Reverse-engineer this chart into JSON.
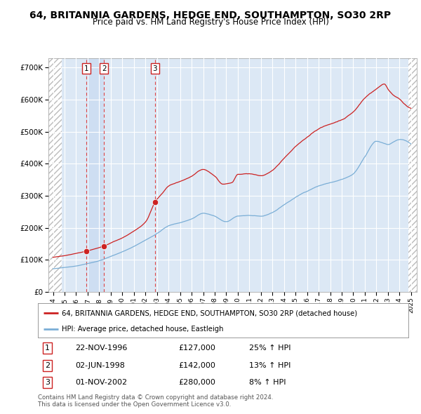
{
  "title": "64, BRITANNIA GARDENS, HEDGE END, SOUTHAMPTON, SO30 2RP",
  "subtitle": "Price paid vs. HM Land Registry's House Price Index (HPI)",
  "title_fontsize": 10,
  "subtitle_fontsize": 8.5,
  "ylim": [
    0,
    730000
  ],
  "yticks": [
    0,
    100000,
    200000,
    300000,
    400000,
    500000,
    600000,
    700000
  ],
  "ytick_labels": [
    "£0",
    "£100K",
    "£200K",
    "£300K",
    "£400K",
    "£500K",
    "£600K",
    "£700K"
  ],
  "xlim_start": 1993.6,
  "xlim_end": 2025.5,
  "background_color": "#ffffff",
  "plot_bg_color": "#dce8f5",
  "hatched_left_end": 1994.75,
  "hatched_right_start": 2024.75,
  "grid_color": "#ffffff",
  "hpi_line_color": "#7aaed6",
  "price_line_color": "#cc2222",
  "sale_marker_color": "#cc2222",
  "dashed_line_color": "#dd4444",
  "sale_events": [
    {
      "num": 1,
      "year": 1996.9,
      "price": 127000,
      "date": "22-NOV-1996",
      "pct": "25%",
      "dir": "↑"
    },
    {
      "num": 2,
      "year": 1998.42,
      "price": 142000,
      "date": "02-JUN-1998",
      "pct": "13%",
      "dir": "↑"
    },
    {
      "num": 3,
      "year": 2002.83,
      "price": 280000,
      "date": "01-NOV-2002",
      "pct": "8%",
      "dir": "↑"
    }
  ],
  "legend_line1": "64, BRITANNIA GARDENS, HEDGE END, SOUTHAMPTON, SO30 2RP (detached house)",
  "legend_line2": "HPI: Average price, detached house, Eastleigh",
  "footer_line1": "Contains HM Land Registry data © Crown copyright and database right 2024.",
  "footer_line2": "This data is licensed under the Open Government Licence v3.0.",
  "xtick_years": [
    1994,
    1995,
    1996,
    1997,
    1998,
    1999,
    2000,
    2001,
    2002,
    2003,
    2004,
    2005,
    2006,
    2007,
    2008,
    2009,
    2010,
    2011,
    2012,
    2013,
    2014,
    2015,
    2016,
    2017,
    2018,
    2019,
    2020,
    2021,
    2022,
    2023,
    2024,
    2025
  ]
}
